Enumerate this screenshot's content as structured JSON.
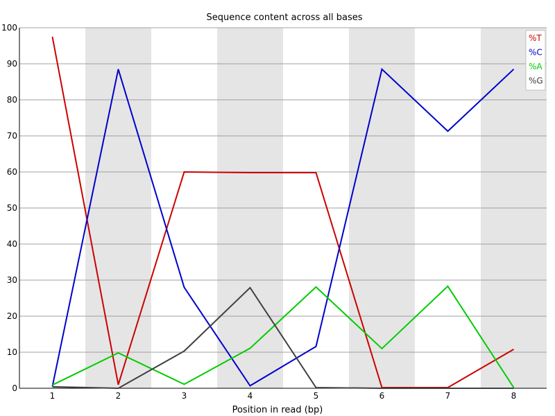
{
  "chart_data": {
    "type": "line",
    "title": "Sequence content across all bases",
    "xlabel": "Position in read (bp)",
    "ylabel": "",
    "x": [
      1,
      2,
      3,
      4,
      5,
      6,
      7,
      8
    ],
    "x_ticks": [
      "1",
      "2",
      "3",
      "4",
      "5",
      "6",
      "7",
      "8"
    ],
    "ylim": [
      0,
      100
    ],
    "y_ticks": [
      "0",
      "10",
      "20",
      "30",
      "40",
      "50",
      "60",
      "70",
      "80",
      "90",
      "100"
    ],
    "grid": "horizontal",
    "background_bands": "alternating grey columns",
    "legend_position": "top-right",
    "series": [
      {
        "name": "%T",
        "color": "#cc0000",
        "values": [
          97.5,
          1.0,
          60.0,
          59.8,
          59.8,
          0.2,
          0.2,
          10.8
        ]
      },
      {
        "name": "%C",
        "color": "#0000cc",
        "values": [
          0.5,
          88.5,
          28.0,
          0.7,
          11.6,
          88.5,
          71.3,
          88.5
        ]
      },
      {
        "name": "%A",
        "color": "#00cc00",
        "values": [
          0.9,
          9.8,
          1.1,
          11.1,
          28.1,
          11.0,
          28.3,
          0.2
        ]
      },
      {
        "name": "%G",
        "color": "#404040",
        "values": [
          0.4,
          0.0,
          10.3,
          27.9,
          0.2,
          0.0,
          0.0,
          0.0
        ]
      }
    ]
  }
}
